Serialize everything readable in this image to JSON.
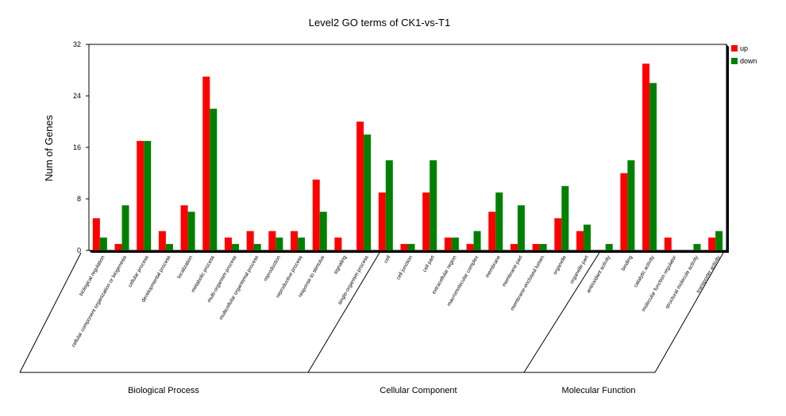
{
  "chart_data": {
    "type": "bar",
    "title": "Level2 GO terms of CK1-vs-T1",
    "ylabel": "Num of Genes",
    "xlabel": "",
    "ylim": [
      0,
      32
    ],
    "yticks": [
      0,
      8,
      16,
      24,
      32
    ],
    "legend_position": "top-right",
    "colors": {
      "up": "#ff0000",
      "down": "#008000"
    },
    "categories": [
      "biological regulation",
      "cellular component organization or biogenesis",
      "cellular process",
      "developmental process",
      "localization",
      "metabolic process",
      "multi-organism process",
      "multicellular organismal process",
      "reproduction",
      "reproductive process",
      "response to stimulus",
      "signaling",
      "single-organism process",
      "cell",
      "cell junction",
      "cell part",
      "extracellular region",
      "macromolecular complex",
      "membrane",
      "membrane part",
      "membrane-enclosed lumen",
      "organelle",
      "organelle part",
      "antioxidant activity",
      "binding",
      "catalytic activity",
      "molecular function regulator",
      "structural molecule activity",
      "transporter activity"
    ],
    "series": [
      {
        "name": "up",
        "values": [
          5,
          1,
          17,
          3,
          7,
          27,
          2,
          3,
          3,
          3,
          11,
          2,
          20,
          9,
          1,
          9,
          2,
          1,
          6,
          1,
          1,
          5,
          3,
          0,
          12,
          29,
          2,
          0,
          2
        ]
      },
      {
        "name": "down",
        "values": [
          2,
          7,
          17,
          1,
          6,
          22,
          1,
          1,
          2,
          2,
          6,
          0,
          18,
          14,
          1,
          14,
          2,
          3,
          9,
          7,
          1,
          10,
          4,
          1,
          14,
          26,
          0,
          1,
          3
        ]
      }
    ],
    "groups": [
      {
        "name": "Biological Process",
        "start": 0,
        "end": 12
      },
      {
        "name": "Cellular Component",
        "start": 13,
        "end": 22
      },
      {
        "name": "Molecular Function",
        "start": 23,
        "end": 28
      }
    ]
  }
}
